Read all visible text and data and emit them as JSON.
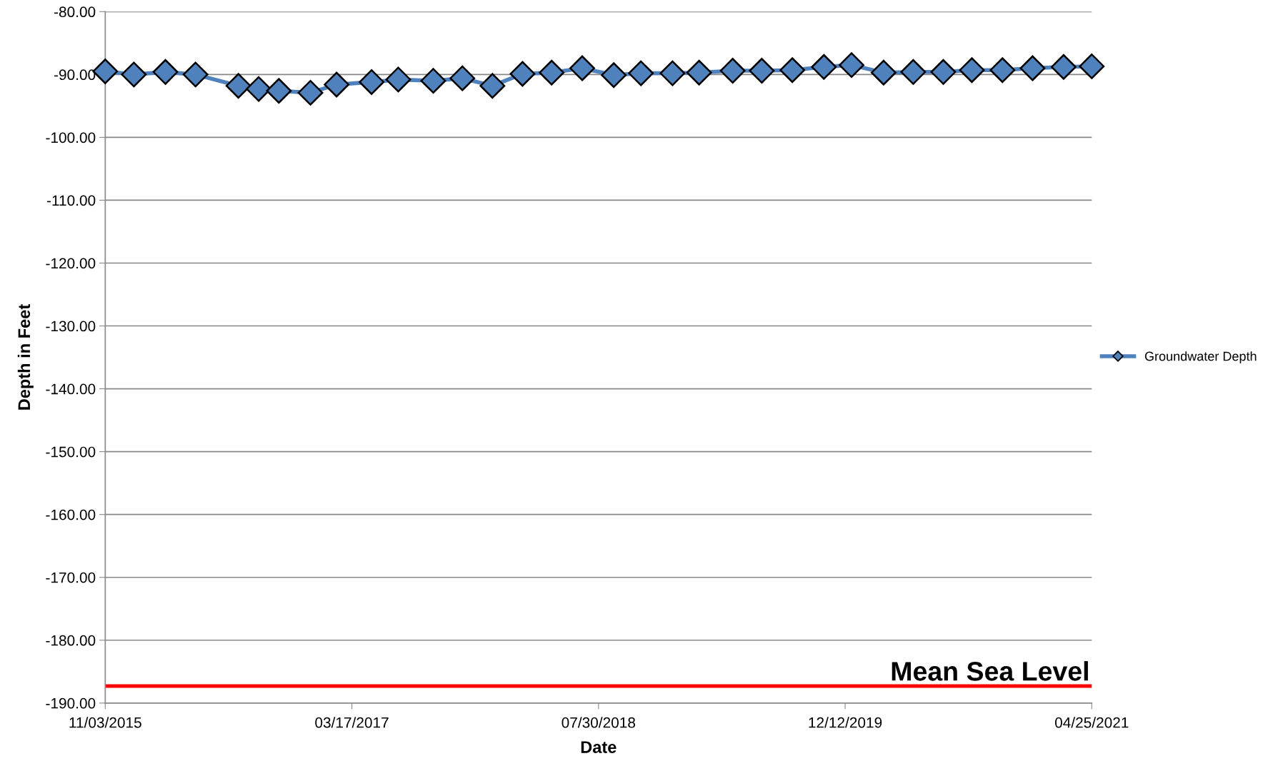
{
  "chart_data": {
    "type": "line",
    "xlabel": "Date",
    "ylabel": "Depth in Feet",
    "x": [
      "2015-11-03",
      "2015-12-31",
      "2016-03-04",
      "2016-05-04",
      "2016-07-30",
      "2016-09-09",
      "2016-10-20",
      "2016-12-23",
      "2017-02-14",
      "2017-04-26",
      "2017-06-19",
      "2017-08-29",
      "2017-10-27",
      "2017-12-27",
      "2018-02-26",
      "2018-04-26",
      "2018-06-27",
      "2018-08-30",
      "2018-10-24",
      "2018-12-27",
      "2019-02-19",
      "2019-04-28",
      "2019-06-26",
      "2019-08-27",
      "2019-10-30",
      "2019-12-25",
      "2020-02-28",
      "2020-04-28",
      "2020-06-28",
      "2020-08-25",
      "2020-10-26",
      "2020-12-26",
      "2021-02-27",
      "2021-04-25"
    ],
    "series": [
      {
        "name": "Groundwater Depth",
        "color": "#4f81bd",
        "values": [
          -89.5,
          -90.0,
          -89.6,
          -90.0,
          -91.8,
          -92.3,
          -92.6,
          -92.9,
          -91.6,
          -91.2,
          -90.8,
          -91.0,
          -90.6,
          -91.8,
          -89.9,
          -89.7,
          -89.0,
          -90.1,
          -89.8,
          -89.8,
          -89.7,
          -89.4,
          -89.4,
          -89.3,
          -88.8,
          -88.5,
          -89.7,
          -89.6,
          -89.6,
          -89.3,
          -89.3,
          -89.0,
          -88.8,
          -88.7
        ]
      }
    ],
    "marker": "diamond",
    "line_style": "solid",
    "grid": "y",
    "legend": "right",
    "xlim": [
      "2015-11-03",
      "2021-04-25"
    ],
    "xticks": [
      {
        "value": "2015-11-03",
        "label": "11/03/2015"
      },
      {
        "value": "2017-03-17",
        "label": "03/17/2017"
      },
      {
        "value": "2018-07-30",
        "label": "07/30/2018"
      },
      {
        "value": "2019-12-12",
        "label": "12/12/2019"
      },
      {
        "value": "2021-04-25",
        "label": "04/25/2021"
      }
    ],
    "ylim": [
      -190,
      -80
    ],
    "yticks": [
      {
        "value": -190,
        "label": "-190.00"
      },
      {
        "value": -180,
        "label": "-180.00"
      },
      {
        "value": -170,
        "label": "-170.00"
      },
      {
        "value": -160,
        "label": "-160.00"
      },
      {
        "value": -150,
        "label": "-150.00"
      },
      {
        "value": -140,
        "label": "-140.00"
      },
      {
        "value": -130,
        "label": "-130.00"
      },
      {
        "value": -120,
        "label": "-120.00"
      },
      {
        "value": -110,
        "label": "-110.00"
      },
      {
        "value": -100,
        "label": "-100.00"
      },
      {
        "value": -90,
        "label": "-90.00"
      },
      {
        "value": -80,
        "label": "-80.00"
      }
    ],
    "ref_lines": [
      {
        "axis": "y",
        "value": -187.3,
        "label": "Mean Sea Level",
        "color": "#ff0000",
        "line_style": "solid"
      }
    ]
  }
}
